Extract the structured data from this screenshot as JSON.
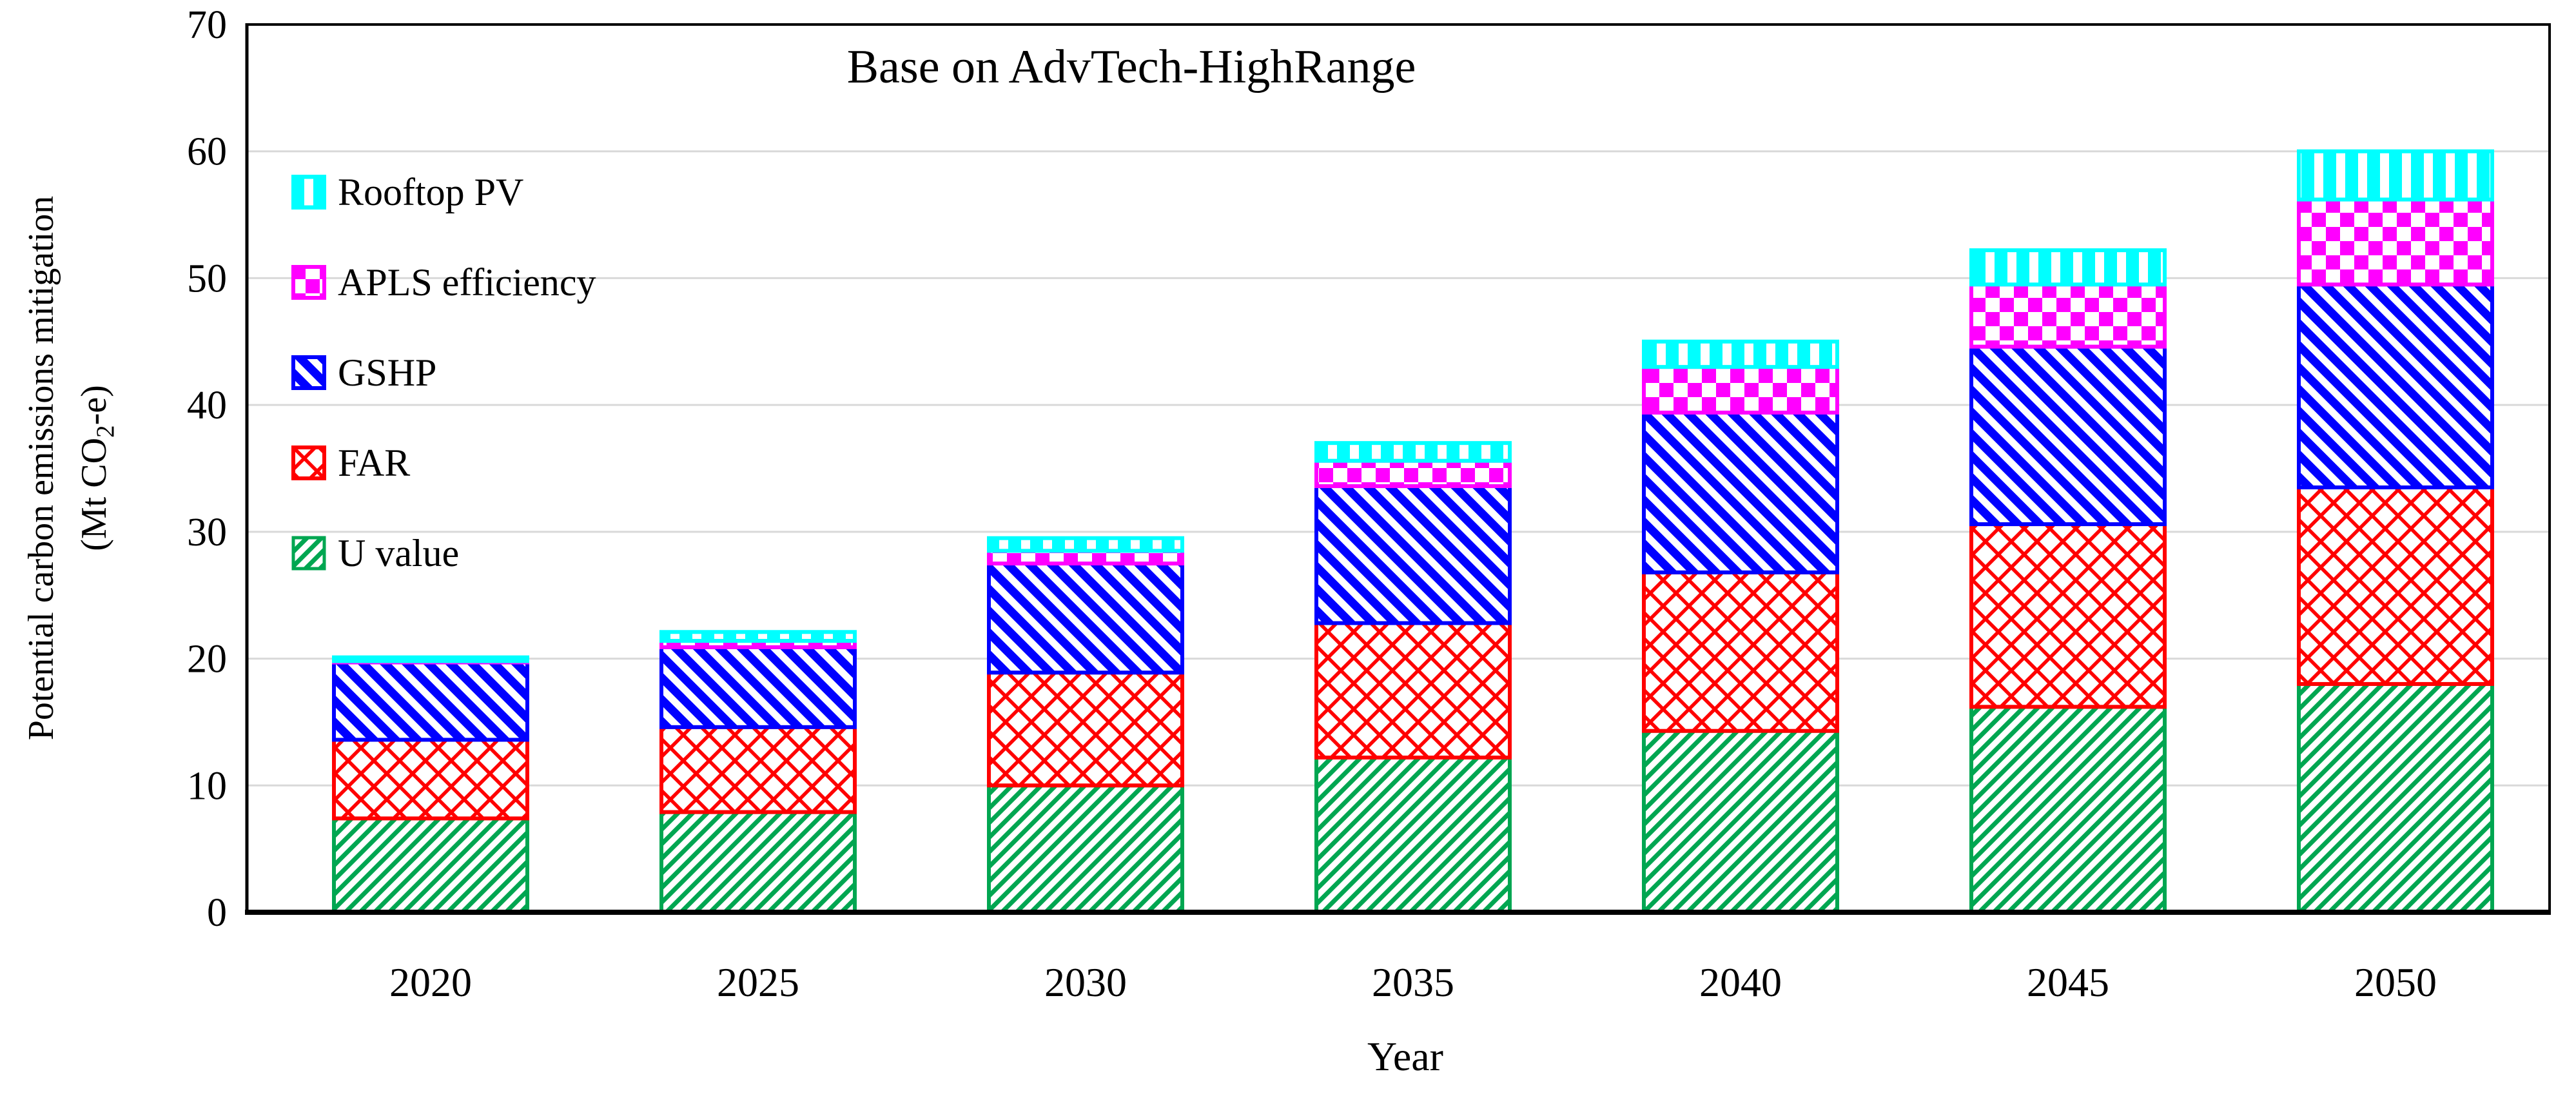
{
  "title": "Base on AdvTech-HighRange",
  "y_axis": {
    "title_line1": "Potential carbon emissions mitigation",
    "title_line2_prefix": "(Mt CO",
    "title_line2_sub": "2",
    "title_line2_suffix": "-e)",
    "ticks": [
      0,
      10,
      20,
      30,
      40,
      50,
      60,
      70
    ]
  },
  "x_axis": {
    "title": "Year"
  },
  "legend": {
    "items": [
      {
        "label": "Rooftop PV"
      },
      {
        "label": "APLS efficiency"
      },
      {
        "label": "GSHP"
      },
      {
        "label": "FAR"
      },
      {
        "label": "U value"
      }
    ]
  },
  "colors": {
    "rooftop_pv": "#00FFFF",
    "apls": "#FF00FF",
    "gshp": "#0000FF",
    "far": "#FF0000",
    "u_value": "#00A651",
    "gridline": "#D9D9D9",
    "axis": "#000000",
    "background": "#FFFFFF"
  },
  "chart_data": {
    "type": "bar",
    "stacked": true,
    "title": "Base on AdvTech-HighRange",
    "xlabel": "Year",
    "ylabel": "Potential carbon emissions mitigation (Mt CO2-e)",
    "ylim": [
      0,
      70
    ],
    "grid": true,
    "legend_position": "upper-left-inside",
    "categories": [
      "2020",
      "2025",
      "2030",
      "2035",
      "2040",
      "2045",
      "2050"
    ],
    "series": [
      {
        "name": "U value",
        "color": "#00A651",
        "pattern": "diag-up",
        "values": [
          7.4,
          7.9,
          10.0,
          12.2,
          14.3,
          16.2,
          18.0
        ]
      },
      {
        "name": "FAR",
        "color": "#FF0000",
        "pattern": "diag-cross",
        "values": [
          6.2,
          6.7,
          8.9,
          10.6,
          12.5,
          14.4,
          15.5
        ]
      },
      {
        "name": "GSHP",
        "color": "#0000FF",
        "pattern": "diag-down",
        "values": [
          6.1,
          6.3,
          8.6,
          10.8,
          12.6,
          14.0,
          16.0
        ]
      },
      {
        "name": "APLS efficiency",
        "color": "#FF00FF",
        "pattern": "checker",
        "values": [
          0.1,
          0.5,
          1.0,
          2.0,
          3.6,
          4.9,
          6.7
        ]
      },
      {
        "name": "Rooftop PV",
        "color": "#00FFFF",
        "pattern": "vert-stripe",
        "values": [
          0.3,
          0.7,
          1.0,
          1.4,
          2.0,
          2.7,
          3.8
        ]
      }
    ],
    "stack_totals": [
      20.1,
      22.1,
      29.5,
      37.0,
      45.0,
      52.2,
      60.0
    ]
  }
}
